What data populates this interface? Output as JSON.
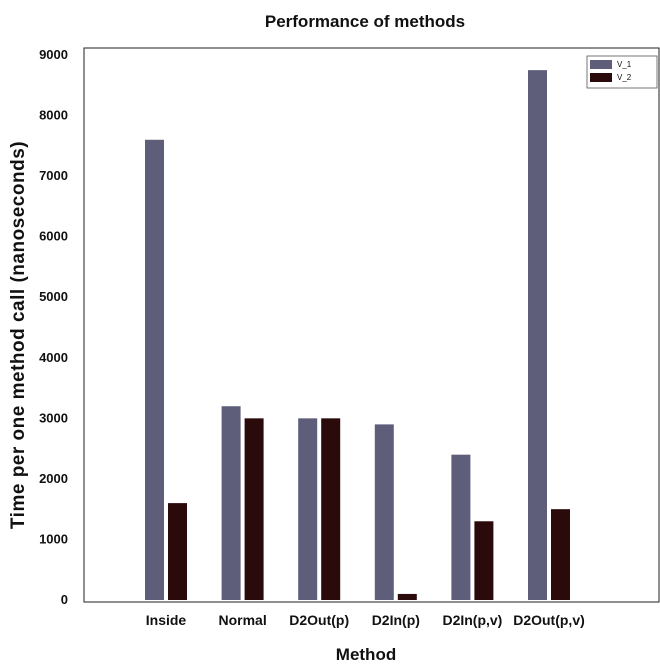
{
  "chart_data": {
    "type": "bar",
    "title": "Performance of methods",
    "xlabel": "Method",
    "ylabel": "Time per one method call (nanoseconds)",
    "categories": [
      "Inside",
      "Normal",
      "D2Out(p)",
      "D2In(p)",
      "D2In(p,v)",
      "D2Out(p,v)"
    ],
    "series": [
      {
        "name": "V_1",
        "values": [
          7600,
          3200,
          3000,
          2900,
          2400,
          8750
        ],
        "color": "#5e5e7a"
      },
      {
        "name": "V_2",
        "values": [
          1600,
          3000,
          3000,
          100,
          1300,
          1500
        ],
        "color": "#2b0a0c"
      }
    ],
    "ylim": [
      0,
      9000
    ],
    "yticks": [
      "0",
      "1000",
      "2000",
      "3000",
      "4000",
      "5000",
      "6000",
      "7000",
      "8000",
      "9000"
    ],
    "grid": false,
    "legend": "top-right"
  }
}
